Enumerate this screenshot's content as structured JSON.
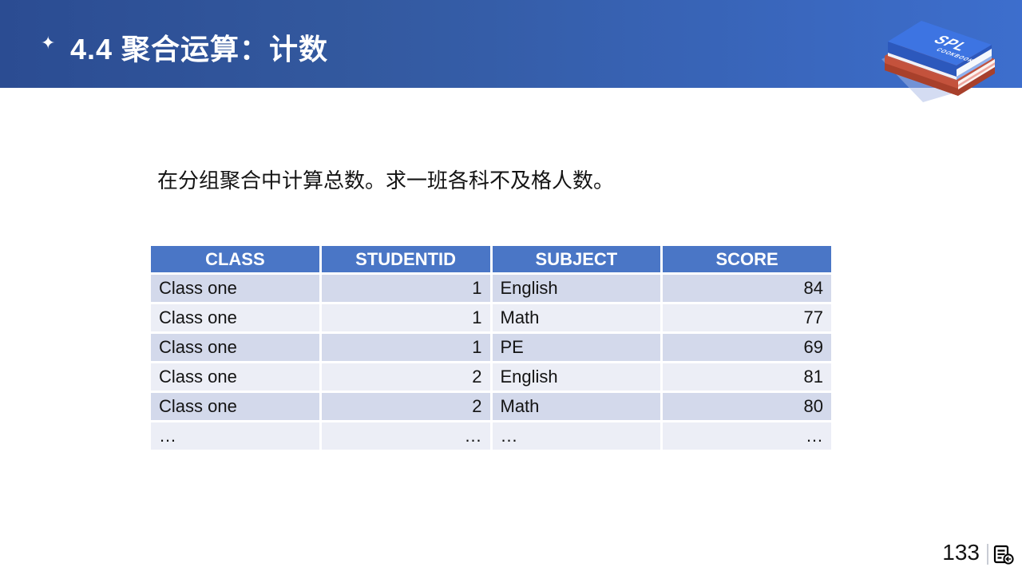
{
  "header": {
    "title": "4.4  聚合运算：计数",
    "star_icon_glyph": "✦",
    "book_badge": {
      "line1": "SPL",
      "line2": "COOKBOOK"
    }
  },
  "body": {
    "description": "在分组聚合中计算总数。求一班各科不及格人数。"
  },
  "table": {
    "columns": [
      "CLASS",
      "STUDENTID",
      "SUBJECT",
      "SCORE"
    ],
    "rows": [
      [
        "Class one",
        "1",
        "English",
        "84"
      ],
      [
        "Class one",
        "1",
        "Math",
        "77"
      ],
      [
        "Class one",
        "1",
        "PE",
        "69"
      ],
      [
        "Class one",
        "2",
        "English",
        "81"
      ],
      [
        "Class one",
        "2",
        "Math",
        "80"
      ],
      [
        "…",
        "…",
        "…",
        "…"
      ]
    ]
  },
  "footer": {
    "page_number": "133"
  },
  "colors": {
    "header_grad_left": "#2B4C92",
    "header_grad_right": "#3D6ECD",
    "table_header_bg": "#4A76C6",
    "row_band_dark": "#D3D9EB",
    "row_band_light": "#ECEEF6"
  }
}
